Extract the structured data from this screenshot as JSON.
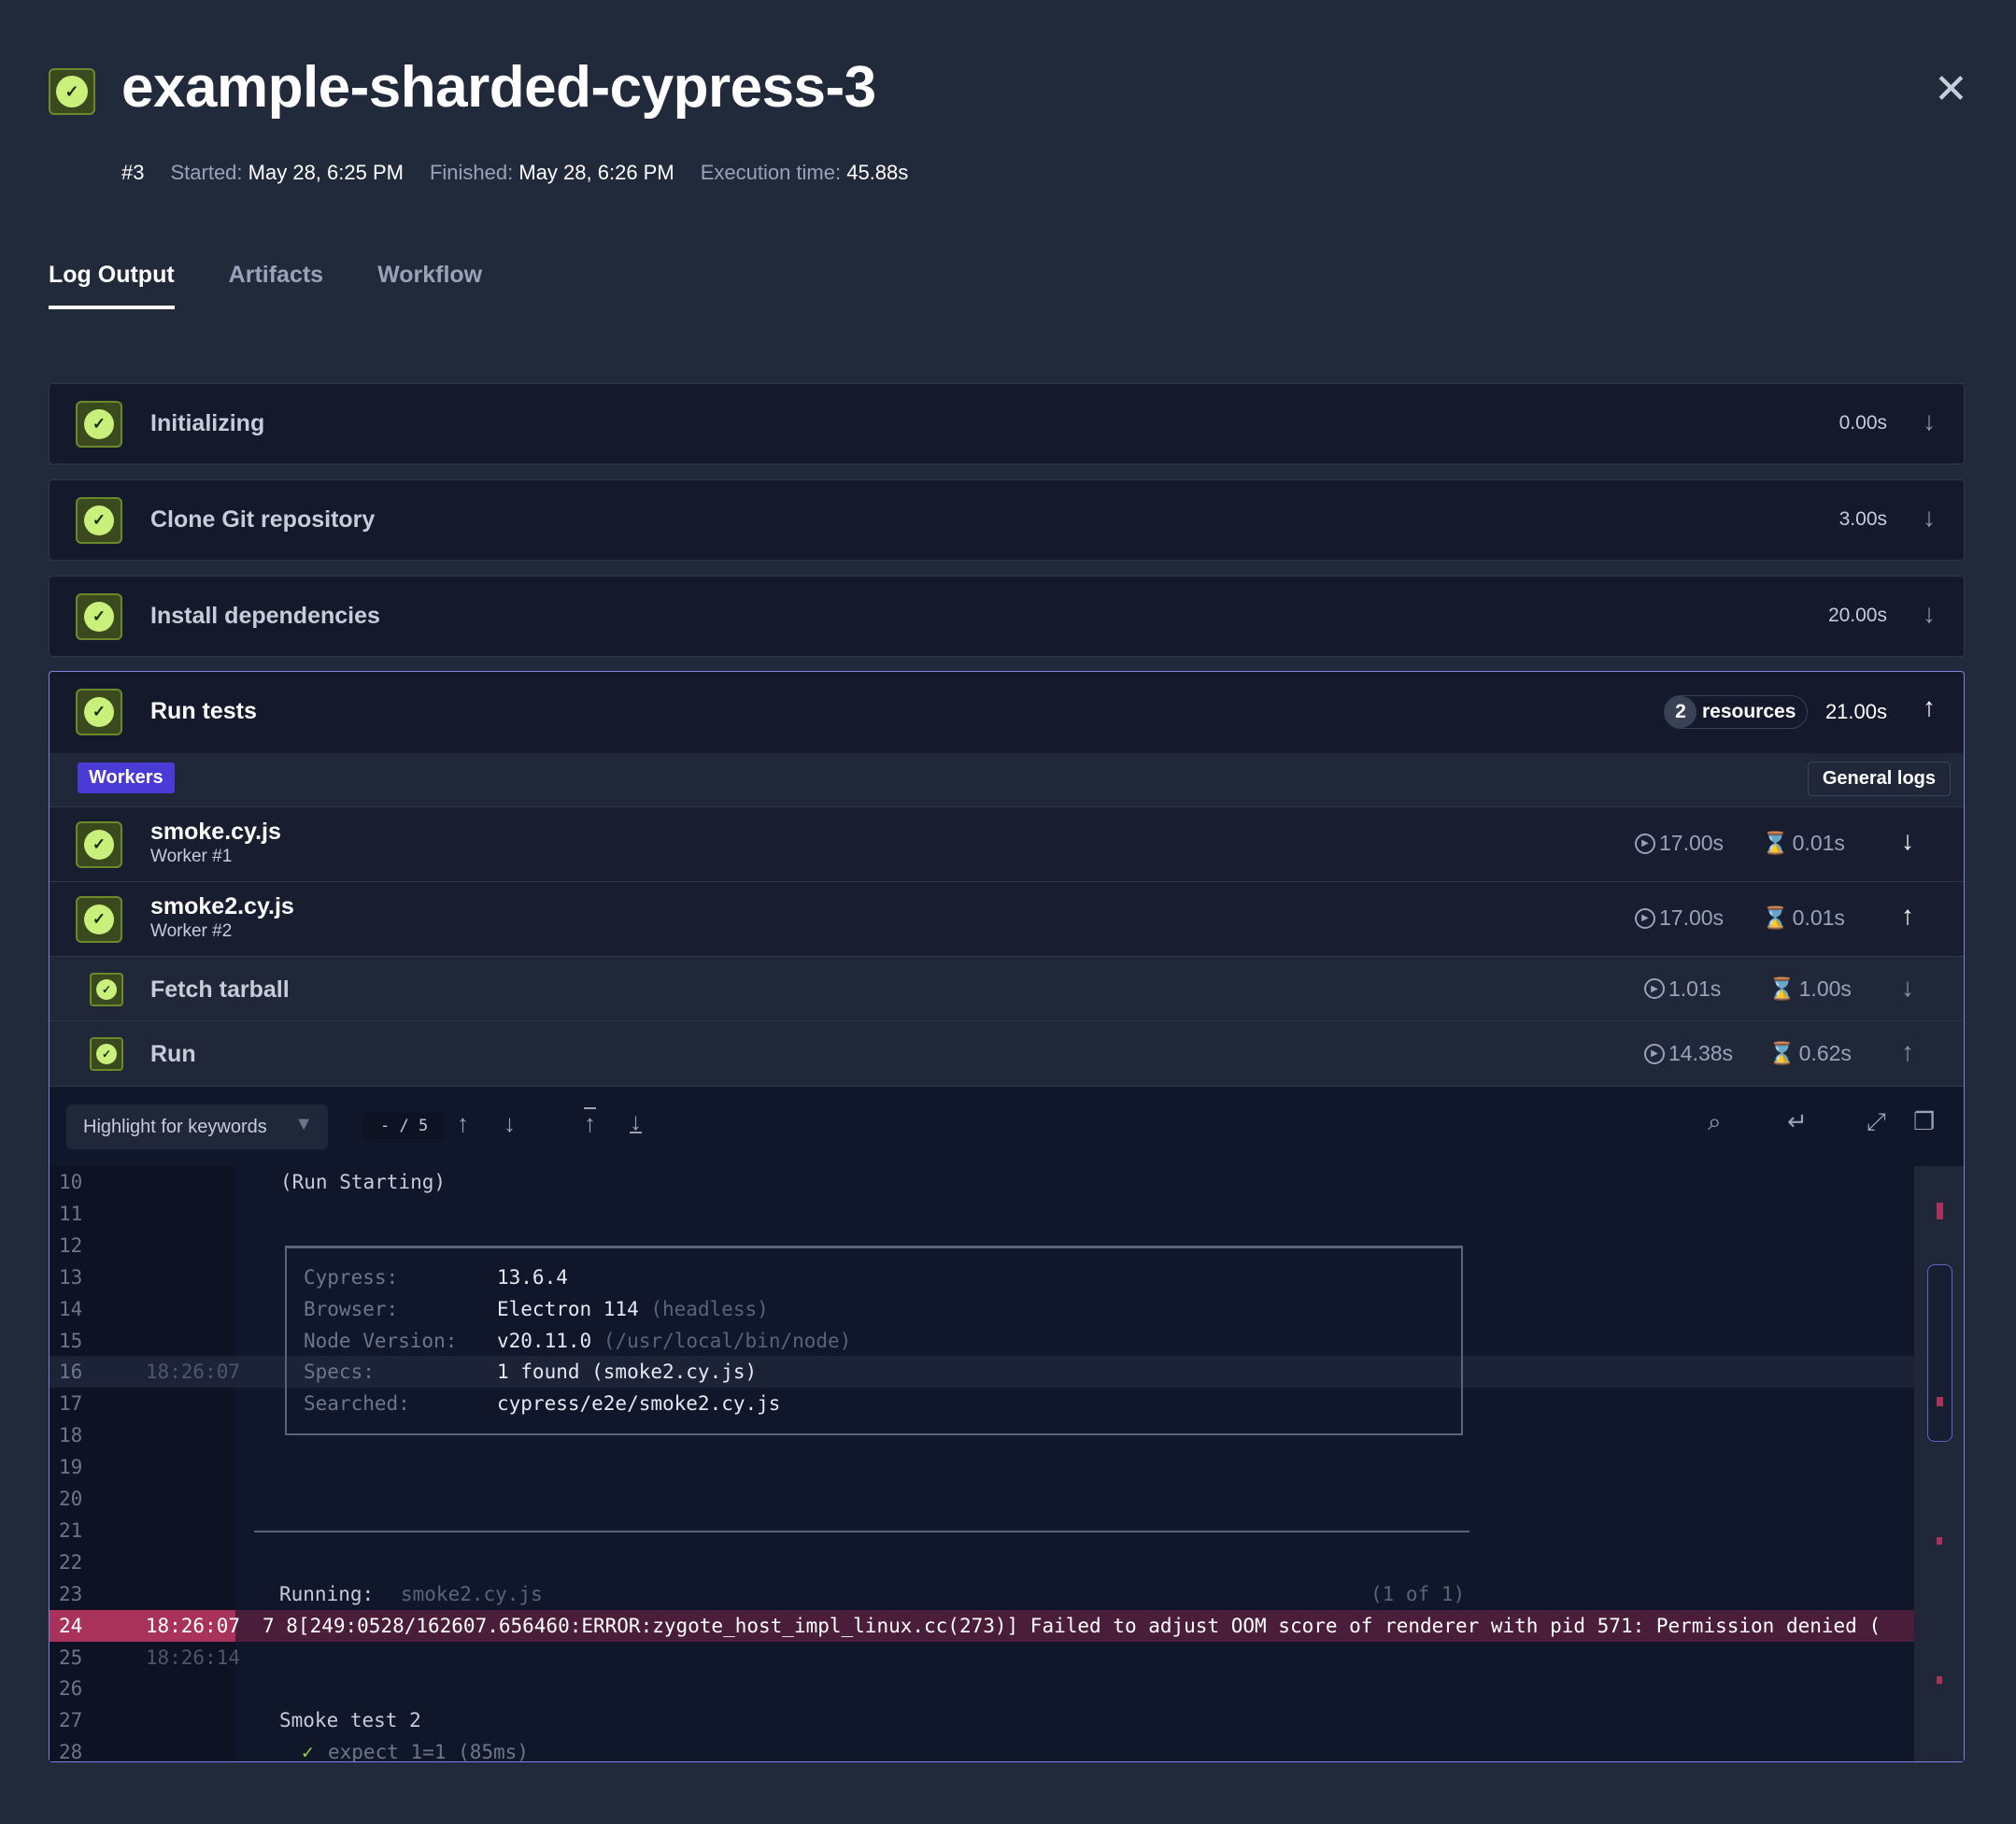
{
  "header": {
    "title": "example-sharded-cypress-3",
    "run_number": "#3",
    "started_label": "Started:",
    "started": "May 28, 6:25 PM",
    "finished_label": "Finished:",
    "finished": "May 28, 6:26 PM",
    "exec_label": "Execution time:",
    "exec": "45.88s",
    "status": "success"
  },
  "tabs": [
    {
      "label": "Log Output",
      "active": true
    },
    {
      "label": "Artifacts"
    },
    {
      "label": "Workflow"
    }
  ],
  "steps": [
    {
      "label": "Initializing",
      "duration": "0.00s"
    },
    {
      "label": "Clone Git repository",
      "duration": "3.00s"
    },
    {
      "label": "Install dependencies",
      "duration": "20.00s"
    }
  ],
  "run_tests": {
    "label": "Run tests",
    "resources_count": "2",
    "resources_label": "resources",
    "duration": "21.00s",
    "workers_label": "Workers",
    "general_logs": "General logs",
    "workers": [
      {
        "name": "smoke.cy.js",
        "worker": "Worker #1",
        "run": "17.00s",
        "wait": "0.01s",
        "expanded": false
      },
      {
        "name": "smoke2.cy.js",
        "worker": "Worker #2",
        "run": "17.00s",
        "wait": "0.01s",
        "expanded": true
      }
    ],
    "substeps": [
      {
        "label": "Fetch tarball",
        "run": "1.01s",
        "wait": "1.00s"
      },
      {
        "label": "Run",
        "run": "14.38s",
        "wait": "0.62s"
      }
    ]
  },
  "log_toolbar": {
    "highlight_placeholder": "Highlight for keywords",
    "match_counter": "- / 5"
  },
  "colors": {
    "accent": "#7b82e6",
    "success": "#c8f07a",
    "error": "#a8325a"
  },
  "log": {
    "run_starting": "(Run Starting)",
    "info": [
      {
        "k": "Cypress:",
        "v": "13.6.4",
        "d": ""
      },
      {
        "k": "Browser:",
        "v": "Electron 114",
        "d": "(headless)"
      },
      {
        "k": "Node Version:",
        "v": "v20.11.0",
        "d": "(/usr/local/bin/node)"
      },
      {
        "k": "Specs:",
        "v": "1 found (smoke2.cy.js)",
        "d": ""
      },
      {
        "k": "Searched:",
        "v": "cypress/e2e/smoke2.cy.js",
        "d": ""
      }
    ],
    "running_label": "Running:",
    "running_spec": "smoke2.cy.js",
    "running_count": "(1 of 1)",
    "error_line": "7 8[249:0528/162607.656460:ERROR:zygote_host_impl_linux.cc(273)] Failed to adjust OOM score of renderer with pid 571: Permission denied (",
    "suite": "Smoke test 2",
    "test": "expect 1=1 (85ms)",
    "check": "✓",
    "line_numbers": [
      "10",
      "11",
      "12",
      "13",
      "14",
      "15",
      "16",
      "17",
      "18",
      "19",
      "20",
      "21",
      "22",
      "23",
      "24",
      "25",
      "26",
      "27",
      "28"
    ],
    "timestamps": {
      "16": "18:26:07",
      "24": "18:26:07",
      "25": "18:26:14"
    }
  }
}
